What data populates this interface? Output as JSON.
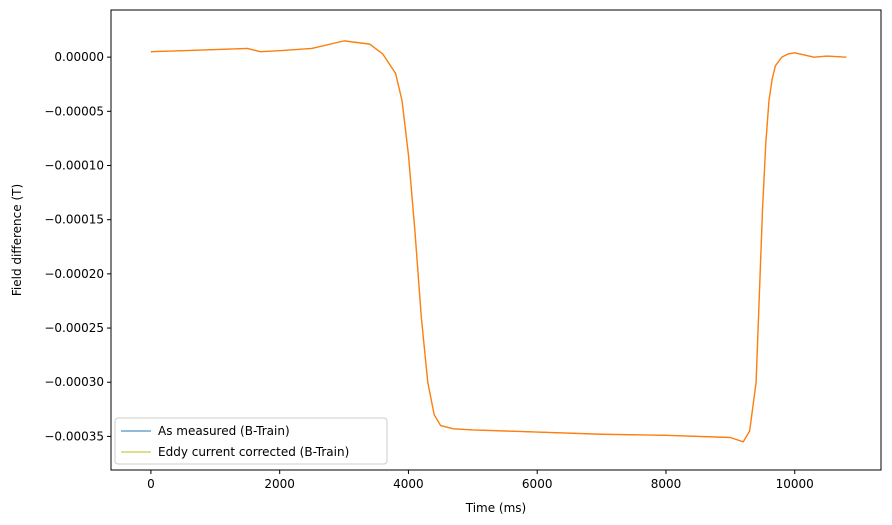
{
  "chart_data": {
    "type": "line",
    "xlabel": "Time (ms)",
    "ylabel": "Field difference (T)",
    "xlim": [
      -620,
      11340
    ],
    "ylim": [
      -0.000381,
      4.35e-05
    ],
    "xticks": [
      0,
      2000,
      4000,
      6000,
      8000,
      10000
    ],
    "xtick_labels": [
      "0",
      "2000",
      "4000",
      "6000",
      "8000",
      "10000"
    ],
    "yticks": [
      0.0,
      -5e-05,
      -0.0001,
      -0.00015,
      -0.0002,
      -0.00025,
      -0.0003,
      -0.00035
    ],
    "ytick_labels": [
      "0.00000",
      "−0.00005",
      "−0.00010",
      "−0.00015",
      "−0.00020",
      "−0.00025",
      "−0.00030",
      "−0.00035"
    ],
    "grid": false,
    "legend": {
      "position": "lower-left"
    },
    "series": [
      {
        "name": "As measured (B-Train)",
        "color": "#1f77b4",
        "x": [
          0,
          500,
          1000,
          1500,
          1700,
          2000,
          2500,
          3000,
          3400,
          3600,
          3800,
          3900,
          4000,
          4100,
          4200,
          4300,
          4400,
          4500,
          4700,
          5000,
          6000,
          7000,
          8000,
          9000,
          9200,
          9300,
          9400,
          9450,
          9500,
          9550,
          9600,
          9650,
          9700,
          9800,
          9900,
          10000,
          10300,
          10500,
          10800
        ],
        "y": [
          5e-06,
          6e-06,
          7e-06,
          8e-06,
          5e-06,
          6e-06,
          8e-06,
          1.5e-05,
          1.2e-05,
          3e-06,
          -1.5e-05,
          -4e-05,
          -9e-05,
          -0.00016,
          -0.00024,
          -0.0003,
          -0.00033,
          -0.00034,
          -0.000343,
          -0.000344,
          -0.000346,
          -0.000348,
          -0.000349,
          -0.000351,
          -0.000355,
          -0.000345,
          -0.0003,
          -0.00022,
          -0.00014,
          -8e-05,
          -4e-05,
          -2e-05,
          -8e-06,
          0.0,
          3e-06,
          4e-06,
          0.0,
          1e-06,
          0.0
        ]
      },
      {
        "name": "Eddy current corrected (B-Train)",
        "color": "#bcbd22",
        "x": [
          0,
          500,
          1000,
          1500,
          1700,
          2000,
          2500,
          3000,
          3400,
          3600,
          3800,
          3900,
          4000,
          4100,
          4200,
          4300,
          4400,
          4500,
          4700,
          5000,
          6000,
          7000,
          8000,
          9000,
          9200,
          9300,
          9400,
          9450,
          9500,
          9550,
          9600,
          9650,
          9700,
          9800,
          9900,
          10000,
          10300,
          10500,
          10800
        ],
        "y": [
          5e-06,
          6e-06,
          7e-06,
          8e-06,
          5e-06,
          6e-06,
          8e-06,
          1.5e-05,
          1.2e-05,
          3e-06,
          -1.5e-05,
          -4e-05,
          -9e-05,
          -0.00016,
          -0.00024,
          -0.0003,
          -0.00033,
          -0.00034,
          -0.000343,
          -0.000344,
          -0.000346,
          -0.000348,
          -0.000349,
          -0.000351,
          -0.000355,
          -0.000345,
          -0.0003,
          -0.00022,
          -0.00014,
          -8e-05,
          -4e-05,
          -2e-05,
          -8e-06,
          0.0,
          3e-06,
          4e-06,
          0.0,
          1e-06,
          0.0
        ]
      },
      {
        "name": "",
        "color": "#ff7f0e",
        "x": [
          0,
          500,
          1000,
          1500,
          1700,
          2000,
          2500,
          3000,
          3400,
          3600,
          3800,
          3900,
          4000,
          4100,
          4200,
          4300,
          4400,
          4500,
          4700,
          5000,
          6000,
          7000,
          8000,
          9000,
          9200,
          9300,
          9400,
          9450,
          9500,
          9550,
          9600,
          9650,
          9700,
          9800,
          9900,
          10000,
          10300,
          10500,
          10800
        ],
        "y": [
          5e-06,
          6e-06,
          7e-06,
          8e-06,
          5e-06,
          6e-06,
          8e-06,
          1.5e-05,
          1.2e-05,
          3e-06,
          -1.5e-05,
          -4e-05,
          -9e-05,
          -0.00016,
          -0.00024,
          -0.0003,
          -0.00033,
          -0.00034,
          -0.000343,
          -0.000344,
          -0.000346,
          -0.000348,
          -0.000349,
          -0.000351,
          -0.000355,
          -0.000345,
          -0.0003,
          -0.00022,
          -0.00014,
          -8e-05,
          -4e-05,
          -2e-05,
          -8e-06,
          0.0,
          3e-06,
          4e-06,
          0.0,
          1e-06,
          0.0
        ]
      }
    ]
  }
}
